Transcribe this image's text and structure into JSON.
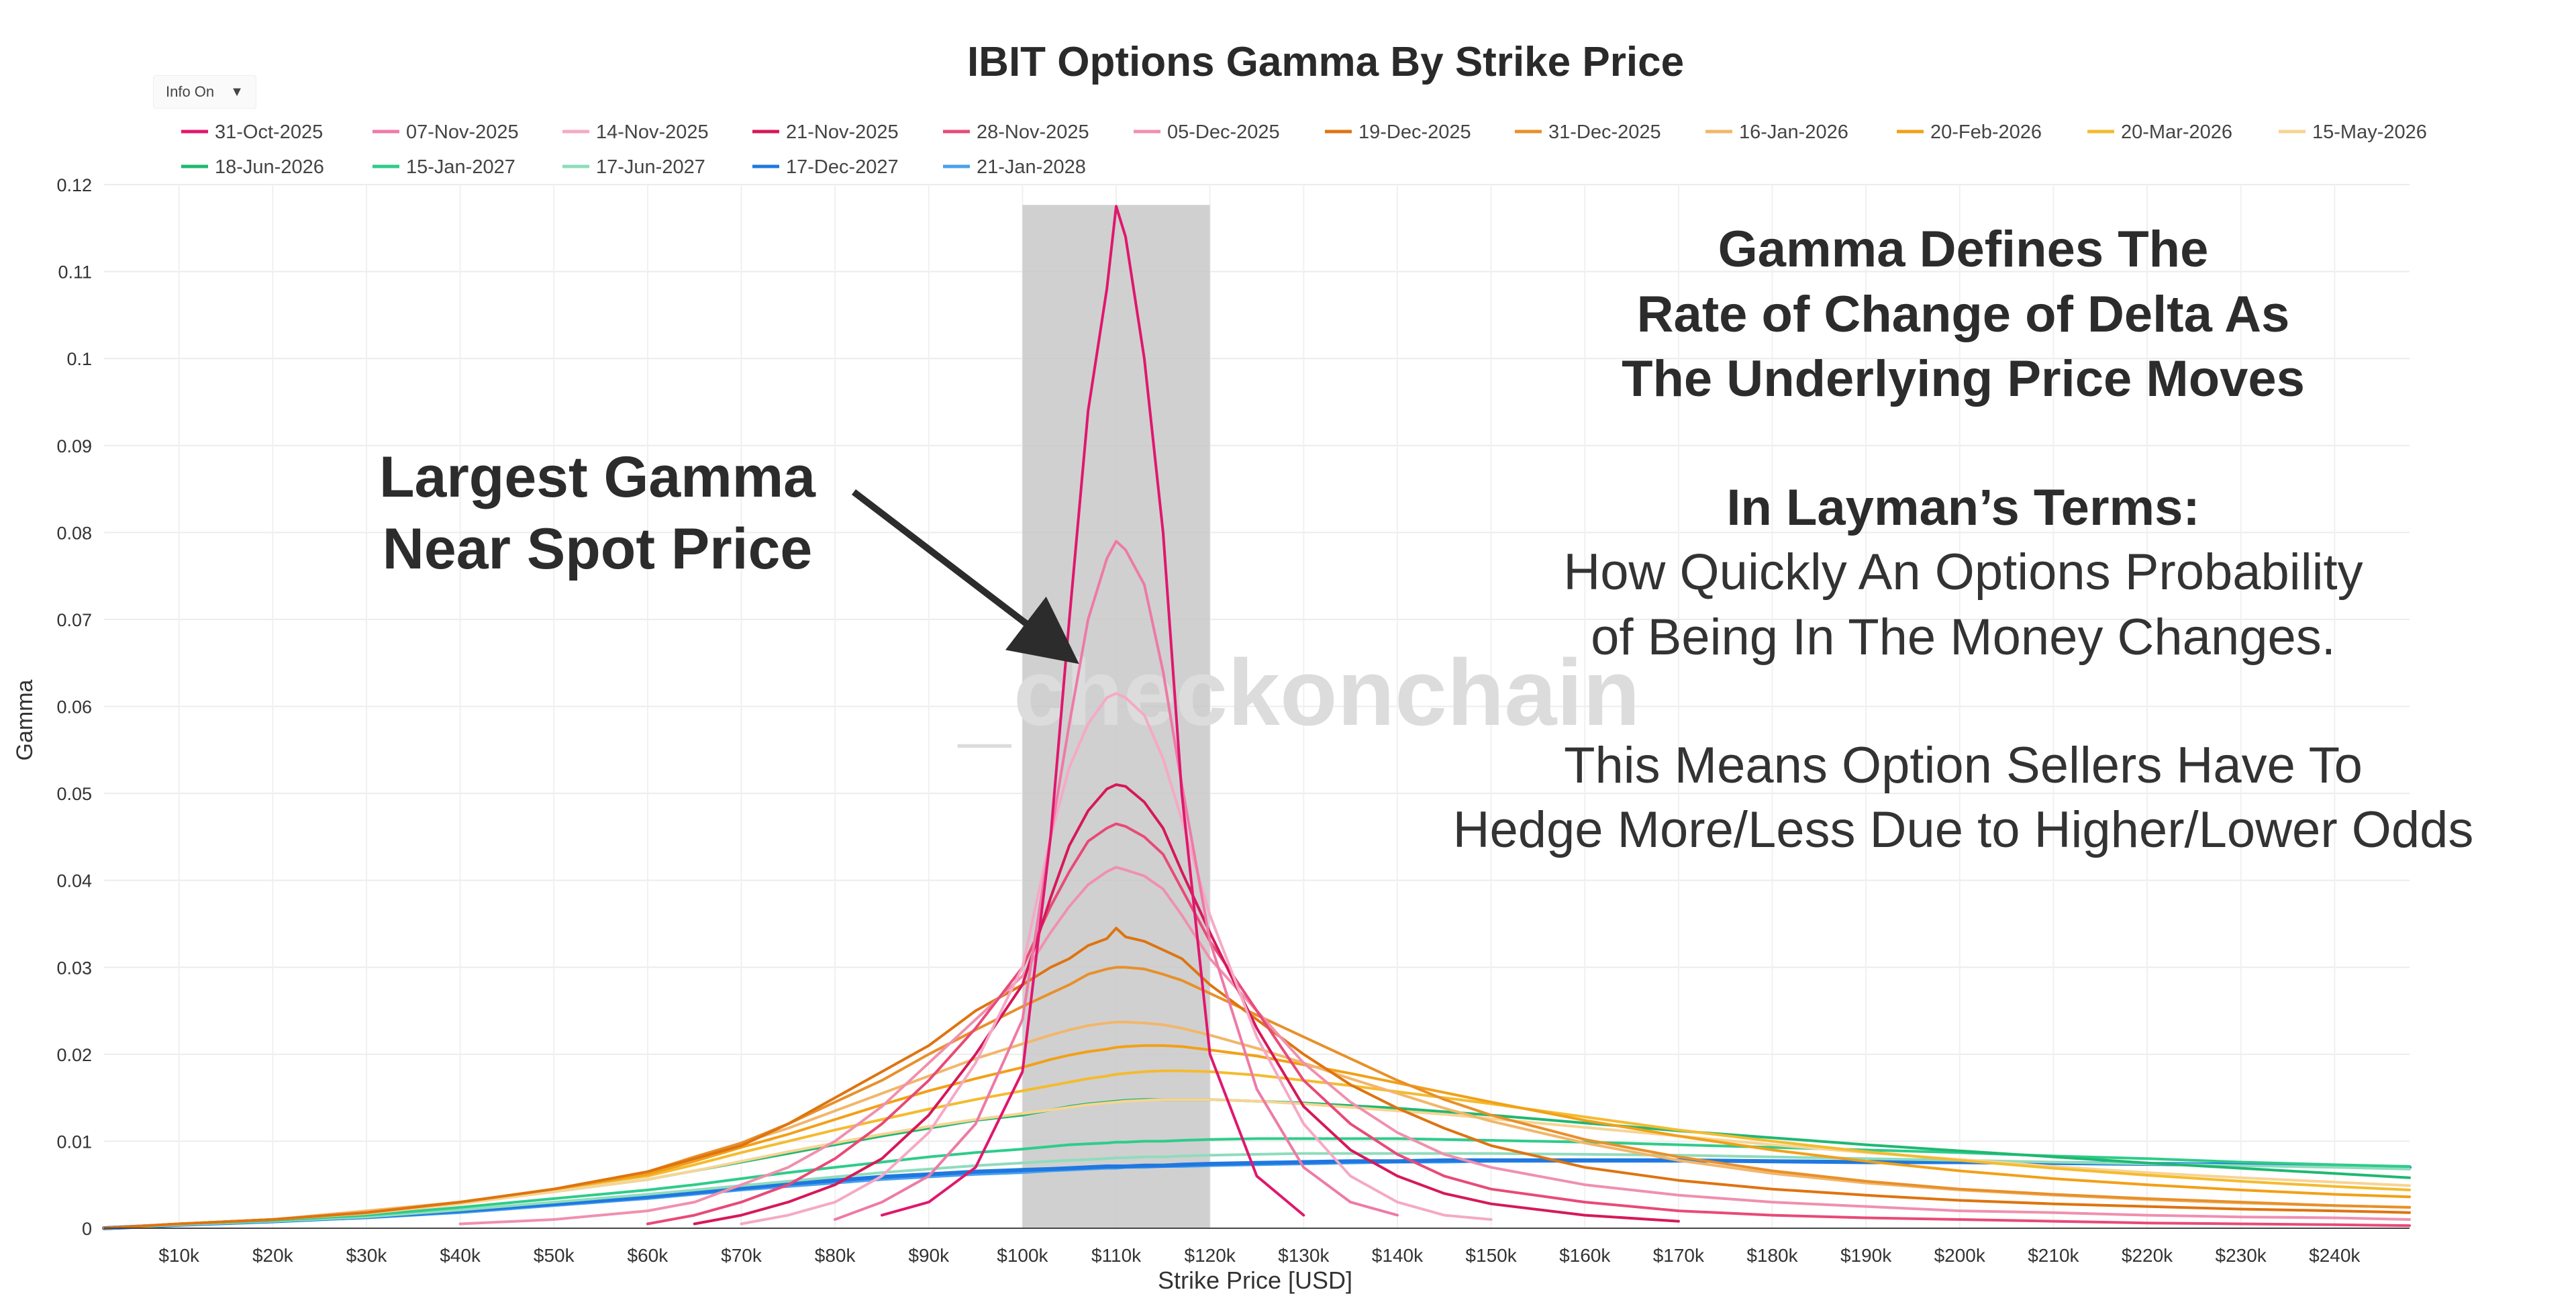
{
  "info_toggle": {
    "label": "Info On",
    "caret": "▼"
  },
  "chart_data": {
    "type": "line",
    "title": "IBIT Options Gamma By Strike Price",
    "xlabel": "Strike Price [USD]",
    "ylabel": "Gamma",
    "xlim": [
      2000,
      248000
    ],
    "ylim": [
      0,
      0.12
    ],
    "x_ticks": [
      {
        "value": 10000,
        "label": "$10k"
      },
      {
        "value": 20000,
        "label": "$20k"
      },
      {
        "value": 30000,
        "label": "$30k"
      },
      {
        "value": 40000,
        "label": "$40k"
      },
      {
        "value": 50000,
        "label": "$50k"
      },
      {
        "value": 60000,
        "label": "$60k"
      },
      {
        "value": 70000,
        "label": "$70k"
      },
      {
        "value": 80000,
        "label": "$80k"
      },
      {
        "value": 90000,
        "label": "$90k"
      },
      {
        "value": 100000,
        "label": "$100k"
      },
      {
        "value": 110000,
        "label": "$110k"
      },
      {
        "value": 120000,
        "label": "$120k"
      },
      {
        "value": 130000,
        "label": "$130k"
      },
      {
        "value": 140000,
        "label": "$140k"
      },
      {
        "value": 150000,
        "label": "$150k"
      },
      {
        "value": 160000,
        "label": "$160k"
      },
      {
        "value": 170000,
        "label": "$170k"
      },
      {
        "value": 180000,
        "label": "$180k"
      },
      {
        "value": 190000,
        "label": "$190k"
      },
      {
        "value": 200000,
        "label": "$200k"
      },
      {
        "value": 210000,
        "label": "$210k"
      },
      {
        "value": 220000,
        "label": "$220k"
      },
      {
        "value": 230000,
        "label": "$230k"
      },
      {
        "value": 240000,
        "label": "$240k"
      }
    ],
    "y_ticks": [
      {
        "value": 0,
        "label": "0"
      },
      {
        "value": 0.01,
        "label": "0.01"
      },
      {
        "value": 0.02,
        "label": "0.02"
      },
      {
        "value": 0.03,
        "label": "0.03"
      },
      {
        "value": 0.04,
        "label": "0.04"
      },
      {
        "value": 0.05,
        "label": "0.05"
      },
      {
        "value": 0.06,
        "label": "0.06"
      },
      {
        "value": 0.07,
        "label": "0.07"
      },
      {
        "value": 0.08,
        "label": "0.08"
      },
      {
        "value": 0.09,
        "label": "0.09"
      },
      {
        "value": 0.1,
        "label": "0.1"
      },
      {
        "value": 0.11,
        "label": "0.11"
      },
      {
        "value": 0.12,
        "label": "0.12"
      }
    ],
    "grid": true,
    "legend_position": "top-left",
    "highlight_band": {
      "x_start": 100000,
      "x_end": 120000,
      "color": "#c8c8c8"
    },
    "x": [
      2000,
      10000,
      20000,
      30000,
      40000,
      50000,
      60000,
      65000,
      70000,
      75000,
      80000,
      85000,
      90000,
      95000,
      100000,
      103000,
      105000,
      107000,
      109000,
      110000,
      111000,
      113000,
      115000,
      117000,
      120000,
      125000,
      130000,
      135000,
      140000,
      145000,
      150000,
      160000,
      170000,
      180000,
      190000,
      200000,
      210000,
      220000,
      230000,
      240000,
      248000
    ],
    "series": [
      {
        "name": "31-Oct-2025",
        "color": "#e0176e",
        "width": 4,
        "values": [
          null,
          null,
          null,
          null,
          null,
          null,
          null,
          null,
          null,
          null,
          null,
          0.0015,
          0.003,
          0.007,
          0.018,
          0.045,
          0.07,
          0.094,
          0.108,
          0.1175,
          0.114,
          0.1,
          0.08,
          0.05,
          0.02,
          0.006,
          0.0015,
          null,
          null,
          null,
          null,
          null,
          null,
          null,
          null,
          null,
          null,
          null,
          null,
          null,
          null
        ]
      },
      {
        "name": "07-Nov-2025",
        "color": "#ee7aa6",
        "width": 4,
        "values": [
          null,
          null,
          null,
          null,
          null,
          null,
          null,
          null,
          null,
          null,
          0.001,
          0.003,
          0.006,
          0.012,
          0.024,
          0.045,
          0.058,
          0.07,
          0.077,
          0.079,
          0.078,
          0.074,
          0.064,
          0.051,
          0.033,
          0.016,
          0.007,
          0.003,
          0.0015,
          null,
          null,
          null,
          null,
          null,
          null,
          null,
          null,
          null,
          null,
          null,
          null
        ]
      },
      {
        "name": "14-Nov-2025",
        "color": "#f5a9c6",
        "width": 4,
        "values": [
          null,
          null,
          null,
          null,
          null,
          null,
          null,
          null,
          0.0005,
          0.0015,
          0.003,
          0.006,
          0.011,
          0.019,
          0.03,
          0.045,
          0.053,
          0.058,
          0.061,
          0.0615,
          0.061,
          0.059,
          0.054,
          0.047,
          0.036,
          0.022,
          0.012,
          0.006,
          0.003,
          0.0015,
          0.001,
          null,
          null,
          null,
          null,
          null,
          null,
          null,
          null,
          null,
          null
        ]
      },
      {
        "name": "21-Nov-2025",
        "color": "#d6185a",
        "width": 4,
        "values": [
          null,
          null,
          null,
          null,
          null,
          null,
          null,
          0.0005,
          0.0015,
          0.003,
          0.005,
          0.008,
          0.013,
          0.02,
          0.028,
          0.038,
          0.044,
          0.048,
          0.0505,
          0.051,
          0.0508,
          0.049,
          0.046,
          0.041,
          0.034,
          0.023,
          0.014,
          0.009,
          0.006,
          0.004,
          0.0028,
          0.0015,
          0.0008,
          null,
          null,
          null,
          null,
          null,
          null,
          null,
          null
        ]
      },
      {
        "name": "28-Nov-2025",
        "color": "#e84a78",
        "width": 4,
        "values": [
          null,
          null,
          null,
          null,
          null,
          null,
          0.0005,
          0.0015,
          0.003,
          0.005,
          0.008,
          0.012,
          0.017,
          0.023,
          0.03,
          0.037,
          0.041,
          0.0445,
          0.046,
          0.0465,
          0.0462,
          0.045,
          0.043,
          0.039,
          0.033,
          0.025,
          0.017,
          0.012,
          0.0085,
          0.006,
          0.0045,
          0.003,
          0.002,
          0.0015,
          0.0012,
          0.001,
          0.0008,
          0.0006,
          0.0005,
          0.0004,
          0.0003
        ]
      },
      {
        "name": "05-Dec-2025",
        "color": "#f090ae",
        "width": 4,
        "values": [
          null,
          null,
          null,
          null,
          0.0005,
          0.001,
          0.002,
          0.003,
          0.005,
          0.007,
          0.01,
          0.014,
          0.019,
          0.024,
          0.029,
          0.034,
          0.037,
          0.0395,
          0.041,
          0.0415,
          0.0412,
          0.0405,
          0.039,
          0.036,
          0.031,
          0.025,
          0.019,
          0.0145,
          0.011,
          0.0085,
          0.007,
          0.005,
          0.0038,
          0.003,
          0.0025,
          0.002,
          0.0018,
          0.0015,
          0.0013,
          0.0012,
          0.001
        ]
      },
      {
        "name": "19-Dec-2025",
        "color": "#de7410",
        "width": 4,
        "values": [
          0,
          0.0005,
          0.001,
          0.0018,
          0.003,
          0.0045,
          0.0065,
          0.008,
          0.0095,
          0.012,
          0.015,
          0.018,
          0.021,
          0.025,
          0.028,
          0.03,
          0.031,
          0.0325,
          0.0333,
          0.0345,
          0.0335,
          0.033,
          0.032,
          0.031,
          0.028,
          0.024,
          0.02,
          0.0165,
          0.0138,
          0.0115,
          0.0095,
          0.007,
          0.0055,
          0.0045,
          0.0038,
          0.0032,
          0.0028,
          0.0025,
          0.0022,
          0.002,
          0.0018
        ]
      },
      {
        "name": "31-Dec-2025",
        "color": "#e8902a",
        "width": 4,
        "values": [
          0,
          0.0005,
          0.001,
          0.0018,
          0.003,
          0.0045,
          0.0065,
          0.0082,
          0.0098,
          0.012,
          0.0145,
          0.017,
          0.02,
          0.0228,
          0.0255,
          0.027,
          0.028,
          0.0292,
          0.0298,
          0.03,
          0.03,
          0.0298,
          0.0292,
          0.0285,
          0.027,
          0.0245,
          0.022,
          0.0195,
          0.017,
          0.0148,
          0.013,
          0.0102,
          0.0082,
          0.0066,
          0.0054,
          0.0045,
          0.0039,
          0.0034,
          0.003,
          0.0026,
          0.0024
        ]
      },
      {
        "name": "16-Jan-2026",
        "color": "#f2b66a",
        "width": 4,
        "values": [
          0,
          0.0005,
          0.001,
          0.002,
          0.003,
          0.0045,
          0.0065,
          0.008,
          0.0098,
          0.0115,
          0.0135,
          0.0155,
          0.0175,
          0.0195,
          0.0212,
          0.0222,
          0.0228,
          0.0233,
          0.0236,
          0.0237,
          0.0237,
          0.0236,
          0.0234,
          0.023,
          0.0222,
          0.0207,
          0.019,
          0.0172,
          0.0155,
          0.0138,
          0.0123,
          0.0098,
          0.0078,
          0.0063,
          0.0052,
          0.0044,
          0.0038,
          0.0033,
          0.0029,
          0.0026,
          0.0024
        ]
      },
      {
        "name": "20-Feb-2026",
        "color": "#f2a018",
        "width": 4,
        "values": [
          0,
          0.0005,
          0.001,
          0.0018,
          0.003,
          0.0045,
          0.0062,
          0.0077,
          0.0093,
          0.0108,
          0.0125,
          0.0142,
          0.0158,
          0.0172,
          0.0185,
          0.0194,
          0.0199,
          0.0203,
          0.0206,
          0.0208,
          0.0209,
          0.021,
          0.021,
          0.0209,
          0.0205,
          0.0198,
          0.0188,
          0.0178,
          0.0167,
          0.0156,
          0.0145,
          0.0124,
          0.0106,
          0.009,
          0.0077,
          0.0066,
          0.0057,
          0.005,
          0.0044,
          0.0039,
          0.0036
        ]
      },
      {
        "name": "20-Mar-2026",
        "color": "#f4bb2f",
        "width": 4,
        "values": [
          0,
          0.0005,
          0.001,
          0.0018,
          0.003,
          0.0045,
          0.006,
          0.0073,
          0.0087,
          0.01,
          0.0113,
          0.0125,
          0.0137,
          0.0148,
          0.0158,
          0.0164,
          0.0168,
          0.0172,
          0.0175,
          0.0177,
          0.0178,
          0.018,
          0.0181,
          0.0181,
          0.018,
          0.0176,
          0.017,
          0.0164,
          0.0157,
          0.015,
          0.0143,
          0.0128,
          0.0113,
          0.01,
          0.0088,
          0.0078,
          0.0069,
          0.0061,
          0.0054,
          0.0048,
          0.0044
        ]
      },
      {
        "name": "15-May-2026",
        "color": "#f7d494",
        "width": 4,
        "values": [
          0,
          0.0005,
          0.001,
          0.0017,
          0.0028,
          0.0042,
          0.0056,
          0.0066,
          0.0077,
          0.0088,
          0.0098,
          0.0108,
          0.0117,
          0.0125,
          0.0132,
          0.0136,
          0.0139,
          0.0142,
          0.0144,
          0.0145,
          0.0146,
          0.0147,
          0.0148,
          0.0148,
          0.0148,
          0.0146,
          0.0143,
          0.0139,
          0.0135,
          0.0131,
          0.0126,
          0.0116,
          0.0106,
          0.0096,
          0.0087,
          0.0079,
          0.0071,
          0.0064,
          0.0058,
          0.0053,
          0.0049
        ]
      },
      {
        "name": "18-Jun-2026",
        "color": "#1fb872",
        "width": 4,
        "values": [
          0,
          0.0005,
          0.001,
          0.0018,
          0.0029,
          0.0042,
          0.0056,
          0.0066,
          0.0076,
          0.0086,
          0.0096,
          0.0106,
          0.0115,
          0.0124,
          0.013,
          0.0136,
          0.014,
          0.0143,
          0.0145,
          0.0146,
          0.0147,
          0.0148,
          0.0148,
          0.0148,
          0.0148,
          0.0146,
          0.0144,
          0.0141,
          0.0138,
          0.0134,
          0.013,
          0.0121,
          0.0112,
          0.0104,
          0.0096,
          0.0089,
          0.0082,
          0.0075,
          0.0069,
          0.0063,
          0.0058
        ]
      },
      {
        "name": "15-Jan-2027",
        "color": "#2ecc8a",
        "width": 4,
        "values": [
          0,
          0.0005,
          0.0009,
          0.0015,
          0.0024,
          0.0034,
          0.0044,
          0.005,
          0.0057,
          0.0064,
          0.007,
          0.0076,
          0.0082,
          0.0087,
          0.0091,
          0.0094,
          0.0096,
          0.0097,
          0.0098,
          0.0099,
          0.0099,
          0.01,
          0.01,
          0.0101,
          0.0102,
          0.0103,
          0.0103,
          0.0103,
          0.0103,
          0.0102,
          0.0101,
          0.0099,
          0.0096,
          0.0093,
          0.009,
          0.0087,
          0.0083,
          0.008,
          0.0076,
          0.0073,
          0.0071
        ]
      },
      {
        "name": "17-Jun-2027",
        "color": "#8fdcbd",
        "width": 4,
        "values": [
          0,
          0.0004,
          0.0008,
          0.0013,
          0.0021,
          0.003,
          0.0039,
          0.0044,
          0.0049,
          0.0054,
          0.0059,
          0.0064,
          0.0068,
          0.0072,
          0.0075,
          0.0077,
          0.0078,
          0.0079,
          0.008,
          0.0081,
          0.0081,
          0.0082,
          0.0082,
          0.0083,
          0.0084,
          0.0085,
          0.0086,
          0.0086,
          0.0086,
          0.0086,
          0.0086,
          0.0085,
          0.0084,
          0.0082,
          0.008,
          0.0078,
          0.0076,
          0.0074,
          0.0072,
          0.007,
          0.0068
        ]
      },
      {
        "name": "17-Dec-2027",
        "color": "#1f78e0",
        "width": 6,
        "values": [
          0,
          0.0004,
          0.0008,
          0.0013,
          0.002,
          0.0028,
          0.0036,
          0.0041,
          0.0046,
          0.0051,
          0.0055,
          0.0059,
          0.0062,
          0.0065,
          0.0067,
          0.0068,
          0.0069,
          0.007,
          0.0071,
          0.0071,
          0.0071,
          0.0072,
          0.0072,
          0.0073,
          0.0074,
          0.0075,
          0.0076,
          0.0077,
          0.0077,
          0.0078,
          0.0078,
          0.0078,
          0.0078,
          0.0077,
          0.0076,
          0.0076,
          0.0075,
          0.0074,
          0.0073,
          0.0071,
          0.007
        ]
      },
      {
        "name": "21-Jan-2028",
        "color": "#4aa0ee",
        "width": 4,
        "values": [
          0,
          0.0004,
          0.0008,
          0.0012,
          0.0018,
          0.0026,
          0.0034,
          0.0039,
          0.0044,
          0.0048,
          0.0052,
          0.0056,
          0.0059,
          0.0062,
          0.0064,
          0.0066,
          0.0067,
          0.0068,
          0.0069,
          0.0069,
          0.007,
          0.007,
          0.0071,
          0.0071,
          0.0072,
          0.0073,
          0.0074,
          0.0075,
          0.0076,
          0.0076,
          0.0077,
          0.0077,
          0.0077,
          0.0077,
          0.0076,
          0.0076,
          0.0075,
          0.0074,
          0.0073,
          0.0072,
          0.0071
        ]
      }
    ]
  },
  "annotations": {
    "arrow_label_line1": "Largest Gamma",
    "arrow_label_line2": "Near Spot Price",
    "heading_line1": "Gamma Defines The",
    "heading_line2": "Rate of Change of Delta As",
    "heading_line3": "The Underlying Price Moves",
    "layman_heading": "In Layman’s Terms:",
    "layman_line1": "How Quickly An Options Probability",
    "layman_line2": "of Being In The Money Changes.",
    "means_line1": "This Means Option Sellers Have To",
    "means_line2": "Hedge More/Less Due to Higher/Lower Odds"
  },
  "watermark": {
    "prefix": "_",
    "text": "checkonchain",
    "prefix_color": "#fbe3b8"
  }
}
